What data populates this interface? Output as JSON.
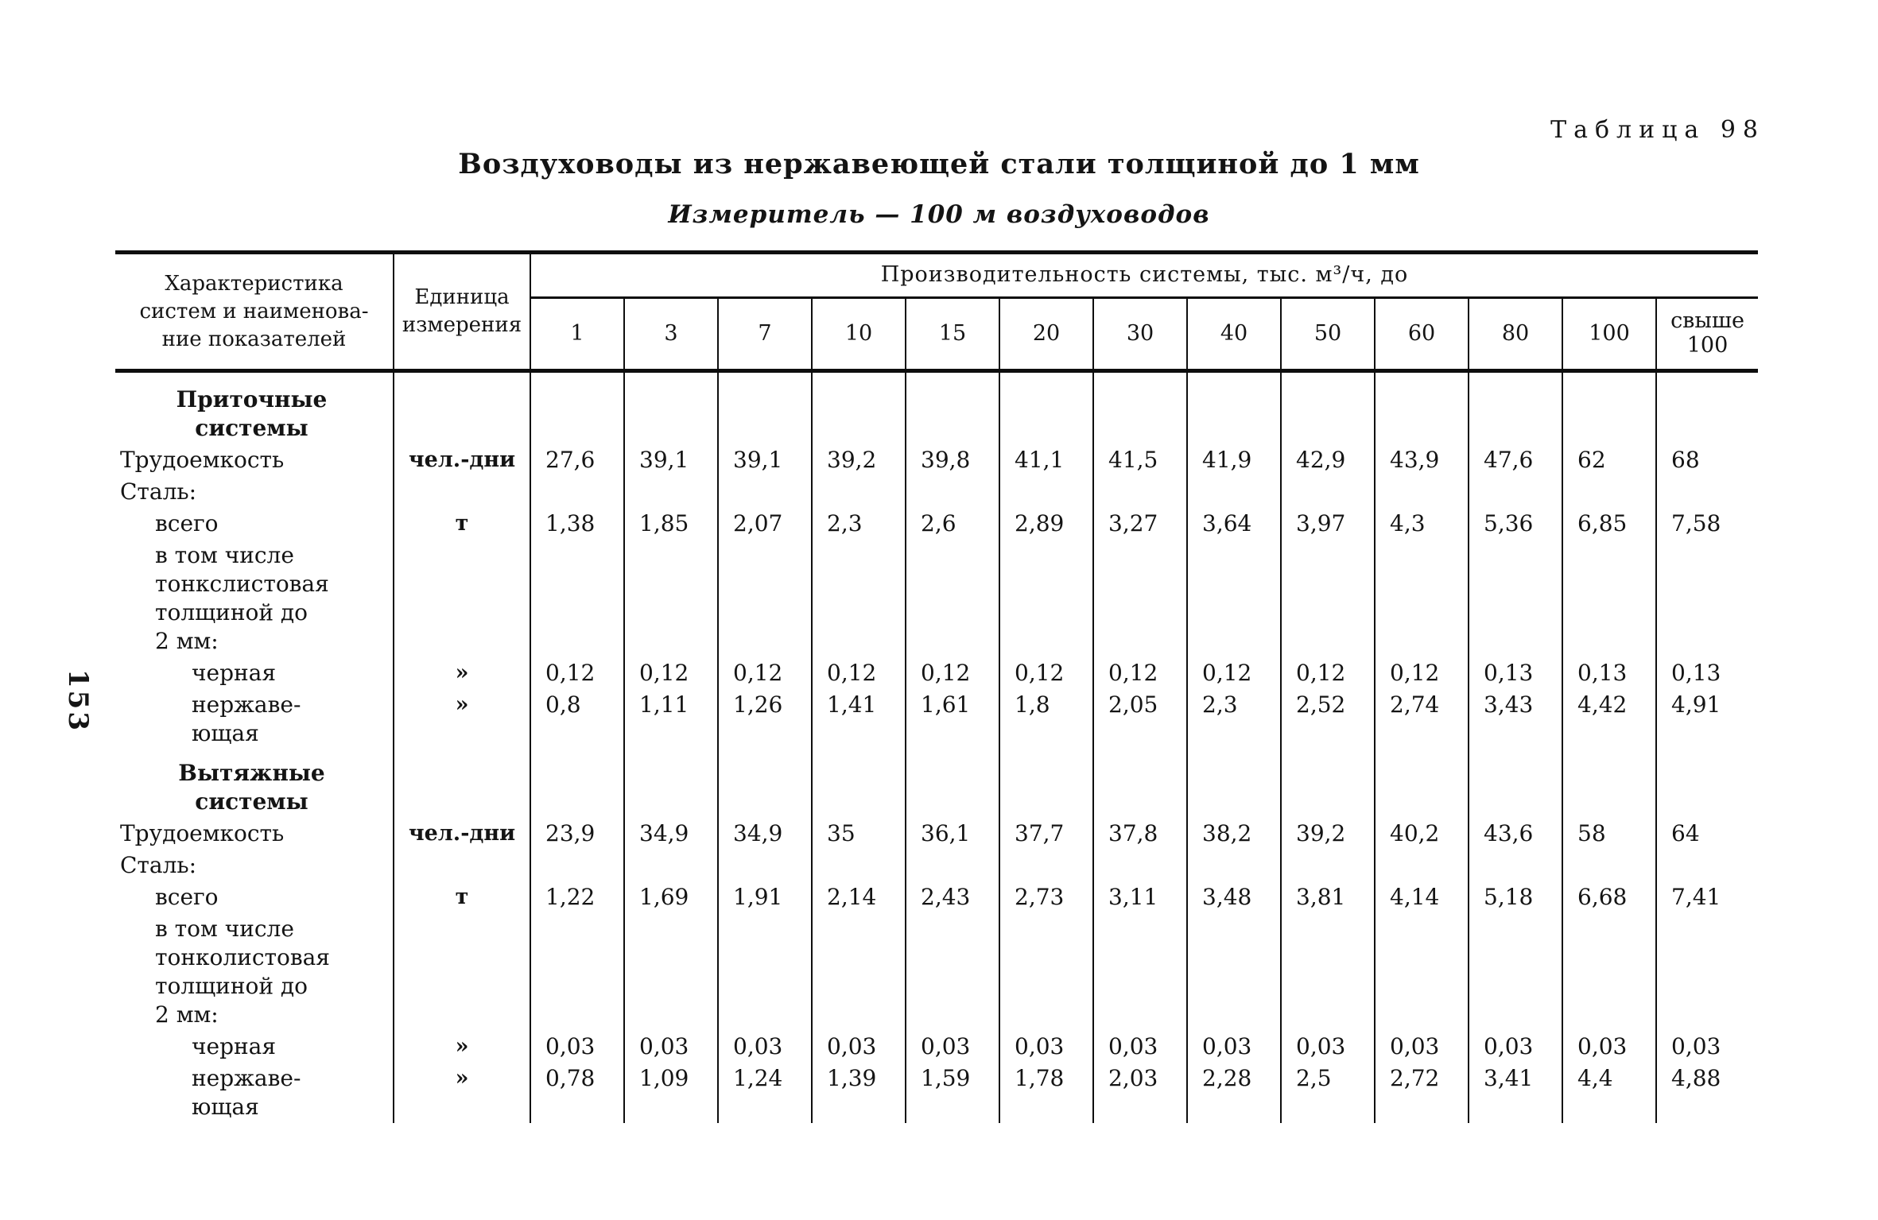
{
  "page": {
    "table_label": "Таблица 98",
    "title": "Воздуховоды из нержавеющей стали толщиной до 1 мм",
    "subtitle": "Измеритель — 100 м воздуховодов",
    "page_number": "153"
  },
  "table": {
    "header": {
      "col_characteristic": "Характеристика\nсистем и наименова-\nние показателей",
      "col_unit": "Единица\nизмерения",
      "capacity_span": "Производительность системы, тыс. м³/ч, до",
      "capacity_columns": [
        "1",
        "3",
        "7",
        "10",
        "15",
        "20",
        "30",
        "40",
        "50",
        "60",
        "80",
        "100",
        "свыше\n100"
      ]
    },
    "rows": [
      {
        "kind": "section",
        "indent": 0,
        "label_lines": [
          "Приточные",
          "системы"
        ],
        "unit": "",
        "values": []
      },
      {
        "kind": "item",
        "indent": 0,
        "label_lines": [
          "Трудоемкость"
        ],
        "unit": "чел.-дни",
        "values": [
          "27,6",
          "39,1",
          "39,1",
          "39,2",
          "39,8",
          "41,1",
          "41,5",
          "41,9",
          "42,9",
          "43,9",
          "47,6",
          "62",
          "68"
        ]
      },
      {
        "kind": "item",
        "indent": 0,
        "label_lines": [
          "Сталь:"
        ],
        "unit": "",
        "values": []
      },
      {
        "kind": "item",
        "indent": 1,
        "label_lines": [
          "всего"
        ],
        "unit": "т",
        "values": [
          "1,38",
          "1,85",
          "2,07",
          "2,3",
          "2,6",
          "2,89",
          "3,27",
          "3,64",
          "3,97",
          "4,3",
          "5,36",
          "6,85",
          "7,58"
        ]
      },
      {
        "kind": "item",
        "indent": 1,
        "label_lines": [
          "в том числе",
          "тонкслистовая",
          "толщиной до",
          "2 мм:"
        ],
        "unit": "",
        "values": []
      },
      {
        "kind": "item",
        "indent": 2,
        "label_lines": [
          "черная"
        ],
        "unit": "»",
        "values": [
          "0,12",
          "0,12",
          "0,12",
          "0,12",
          "0,12",
          "0,12",
          "0,12",
          "0,12",
          "0,12",
          "0,12",
          "0,13",
          "0,13",
          "0,13"
        ]
      },
      {
        "kind": "item",
        "indent": 2,
        "label_lines": [
          "нержаве-",
          "ющая"
        ],
        "unit": "»",
        "values": [
          "0,8",
          "1,11",
          "1,26",
          "1,41",
          "1,61",
          "1,8",
          "2,05",
          "2,3",
          "2,52",
          "2,74",
          "3,43",
          "4,42",
          "4,91"
        ]
      },
      {
        "kind": "section",
        "indent": 0,
        "label_lines": [
          "Вытяжные",
          "системы"
        ],
        "unit": "",
        "values": []
      },
      {
        "kind": "item",
        "indent": 0,
        "label_lines": [
          "Трудоемкость"
        ],
        "unit": "чел.-дни",
        "values": [
          "23,9",
          "34,9",
          "34,9",
          "35",
          "36,1",
          "37,7",
          "37,8",
          "38,2",
          "39,2",
          "40,2",
          "43,6",
          "58",
          "64"
        ]
      },
      {
        "kind": "item",
        "indent": 0,
        "label_lines": [
          "Сталь:"
        ],
        "unit": "",
        "values": []
      },
      {
        "kind": "item",
        "indent": 1,
        "label_lines": [
          "всего"
        ],
        "unit": "т",
        "values": [
          "1,22",
          "1,69",
          "1,91",
          "2,14",
          "2,43",
          "2,73",
          "3,11",
          "3,48",
          "3,81",
          "4,14",
          "5,18",
          "6,68",
          "7,41"
        ]
      },
      {
        "kind": "item",
        "indent": 1,
        "label_lines": [
          "в том числе",
          "тонколистовая",
          "толщиной до",
          "2 мм:"
        ],
        "unit": "",
        "values": []
      },
      {
        "kind": "item",
        "indent": 2,
        "label_lines": [
          "черная"
        ],
        "unit": "»",
        "values": [
          "0,03",
          "0,03",
          "0,03",
          "0,03",
          "0,03",
          "0,03",
          "0,03",
          "0,03",
          "0,03",
          "0,03",
          "0,03",
          "0,03",
          "0,03"
        ]
      },
      {
        "kind": "item",
        "indent": 2,
        "label_lines": [
          "нержаве-",
          "ющая"
        ],
        "unit": "»",
        "values": [
          "0,78",
          "1,09",
          "1,24",
          "1,39",
          "1,59",
          "1,78",
          "2,03",
          "2,28",
          "2,5",
          "2,72",
          "3,41",
          "4,4",
          "4,88"
        ]
      }
    ]
  }
}
